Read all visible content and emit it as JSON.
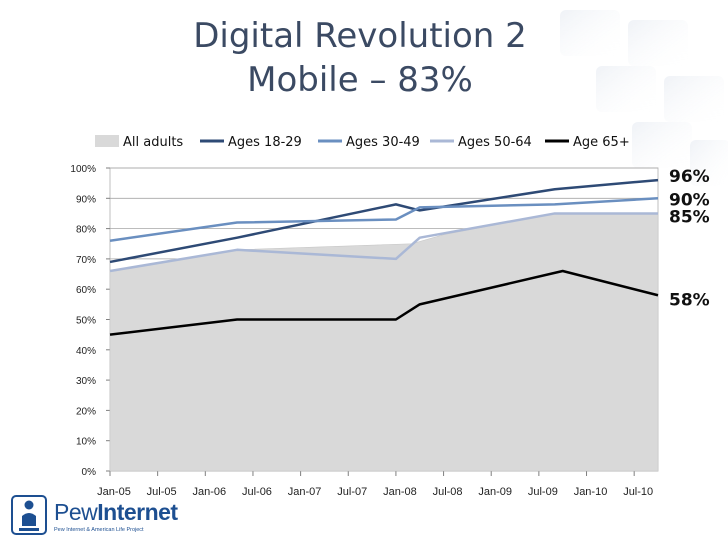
{
  "slide": {
    "title_line1": "Digital Revolution 2",
    "title_line2": "Mobile – 83%"
  },
  "logo": {
    "name_part1": "Pew",
    "name_part2": "Internet",
    "tagline": "Pew Internet & American Life Project"
  },
  "colors": {
    "area": "#d9d9d9",
    "ages_18_29": "#2e4a75",
    "ages_30_49": "#6a8fc0",
    "ages_50_64": "#aab8d6",
    "age_65": "#000000",
    "title": "#3b4a63"
  },
  "chart_data": {
    "type": "line",
    "title": "",
    "xlabel": "",
    "ylabel": "",
    "ylim": [
      0,
      100
    ],
    "y_ticks": [
      "0%",
      "10%",
      "20%",
      "30%",
      "40%",
      "50%",
      "60%",
      "70%",
      "80%",
      "90%",
      "100%"
    ],
    "x_ticks": [
      "Jan-05",
      "Jul-05",
      "Jan-06",
      "Jul-06",
      "Jan-07",
      "Jul-07",
      "Jan-08",
      "Jul-08",
      "Jan-09",
      "Jul-09",
      "Jan-10",
      "Jul-10"
    ],
    "x_domain_months": [
      0,
      69
    ],
    "legend_position": "top",
    "series": [
      {
        "name": "All adults",
        "kind": "area",
        "color": "#d9d9d9",
        "points": [
          [
            0,
            66
          ],
          [
            16,
            73
          ],
          [
            38,
            75
          ],
          [
            42,
            78
          ],
          [
            56,
            85
          ],
          [
            69,
            85
          ]
        ]
      },
      {
        "name": "Ages 18-29",
        "kind": "line",
        "color": "#2e4a75",
        "points": [
          [
            0,
            69
          ],
          [
            16,
            77
          ],
          [
            36,
            88
          ],
          [
            39,
            86
          ],
          [
            56,
            93
          ],
          [
            69,
            96
          ]
        ]
      },
      {
        "name": "Ages 30-49",
        "kind": "line",
        "color": "#6a8fc0",
        "points": [
          [
            0,
            76
          ],
          [
            16,
            82
          ],
          [
            36,
            83
          ],
          [
            39,
            87
          ],
          [
            56,
            88
          ],
          [
            69,
            90
          ]
        ]
      },
      {
        "name": "Ages 50-64",
        "kind": "line",
        "color": "#aab8d6",
        "points": [
          [
            0,
            66
          ],
          [
            16,
            73
          ],
          [
            36,
            70
          ],
          [
            39,
            77
          ],
          [
            56,
            85
          ],
          [
            69,
            85
          ]
        ]
      },
      {
        "name": "Age 65+",
        "kind": "line",
        "color": "#000000",
        "points": [
          [
            0,
            45
          ],
          [
            16,
            50
          ],
          [
            36,
            50
          ],
          [
            39,
            55
          ],
          [
            57,
            66
          ],
          [
            69,
            58
          ]
        ]
      }
    ],
    "end_labels": [
      {
        "text": "96%",
        "value": 96
      },
      {
        "text": "90%",
        "value": 90
      },
      {
        "text": "85%",
        "value": 85
      },
      {
        "text": "58%",
        "value": 58
      }
    ]
  }
}
